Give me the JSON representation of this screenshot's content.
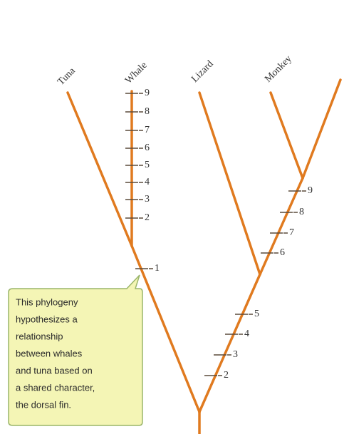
{
  "taxa": [
    "Tuna",
    "Whale",
    "Lizard",
    "Monkey"
  ],
  "whale_characters": [
    2,
    3,
    4,
    5,
    6,
    7,
    8,
    9
  ],
  "shared_character": 1,
  "lower_right_characters": [
    2,
    3,
    4,
    5
  ],
  "upper_right_characters": [
    6,
    7,
    8,
    9
  ],
  "callout": [
    "This phylogeny",
    "hypothesizes a",
    "relationship",
    "between whales",
    "and tuna based on",
    "a shared character,",
    "the dorsal fin."
  ]
}
